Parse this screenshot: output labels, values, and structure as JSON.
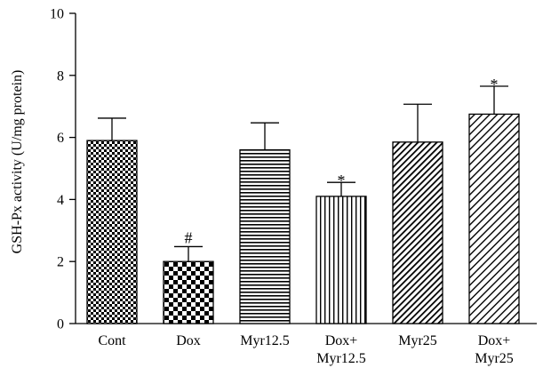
{
  "chart_data": {
    "type": "bar",
    "title": "",
    "ylabel": "GSH-Px activity (U/mg protein)",
    "xlabel": "",
    "ylim": [
      0,
      10
    ],
    "yticks": [
      0,
      2,
      4,
      6,
      8,
      10
    ],
    "categories": [
      [
        "Cont"
      ],
      [
        "Dox"
      ],
      [
        "Myr12.5"
      ],
      [
        "Dox+",
        "Myr12.5"
      ],
      [
        "Myr25"
      ],
      [
        "Dox+",
        "Myr25"
      ]
    ],
    "values": [
      5.9,
      2.0,
      5.6,
      4.1,
      5.85,
      6.75
    ],
    "errors": [
      0.72,
      0.48,
      0.87,
      0.45,
      1.22,
      0.9
    ],
    "annotations": [
      "",
      "#",
      "",
      "*",
      "",
      "*"
    ],
    "patterns": [
      "checker-fine",
      "checker-coarse",
      "horizontal-lines",
      "vertical-lines",
      "diagonal-dense",
      "diagonal-sparse"
    ],
    "legend": "none",
    "grid": false,
    "colors": {
      "ink": "#000000",
      "background": "#ffffff"
    }
  }
}
